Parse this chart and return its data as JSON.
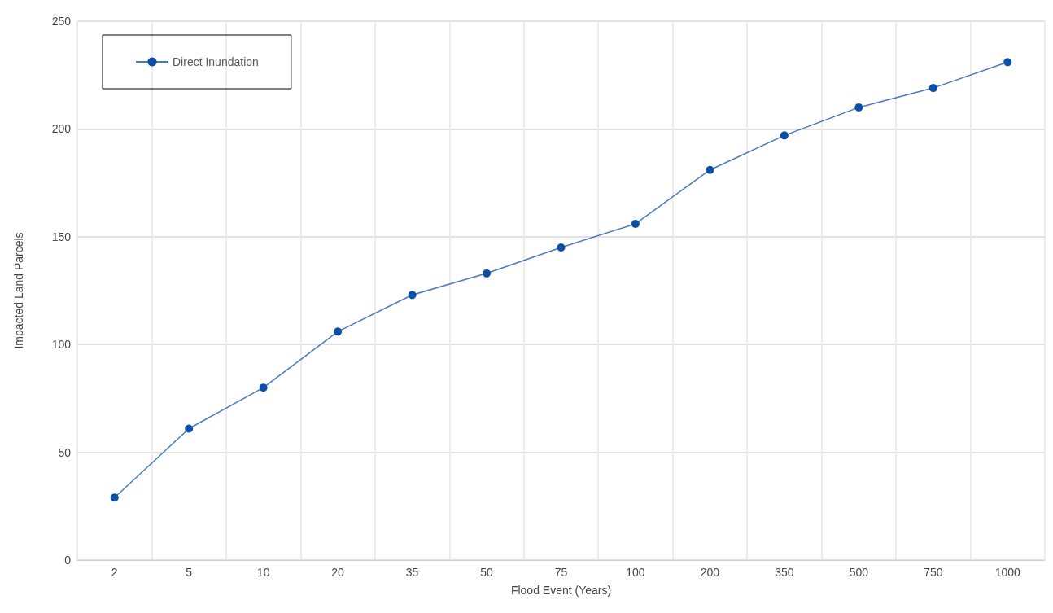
{
  "chart_data": {
    "type": "line",
    "xlabel": "Flood Event (Years)",
    "ylabel": "Impacted Land Parcels",
    "categories": [
      "2",
      "5",
      "10",
      "20",
      "35",
      "50",
      "75",
      "100",
      "200",
      "350",
      "500",
      "750",
      "1000"
    ],
    "series": [
      {
        "name": "Direct Inundation",
        "color": "#0b4fa8",
        "values": [
          29,
          61,
          80,
          106,
          123,
          133,
          145,
          156,
          181,
          197,
          210,
          219,
          231
        ]
      }
    ],
    "ylim": [
      0,
      250
    ],
    "yticks": [
      0,
      50,
      100,
      150,
      200,
      250
    ],
    "grid": true,
    "legend": "top left",
    "marker": "circle",
    "line_style": "solid"
  }
}
